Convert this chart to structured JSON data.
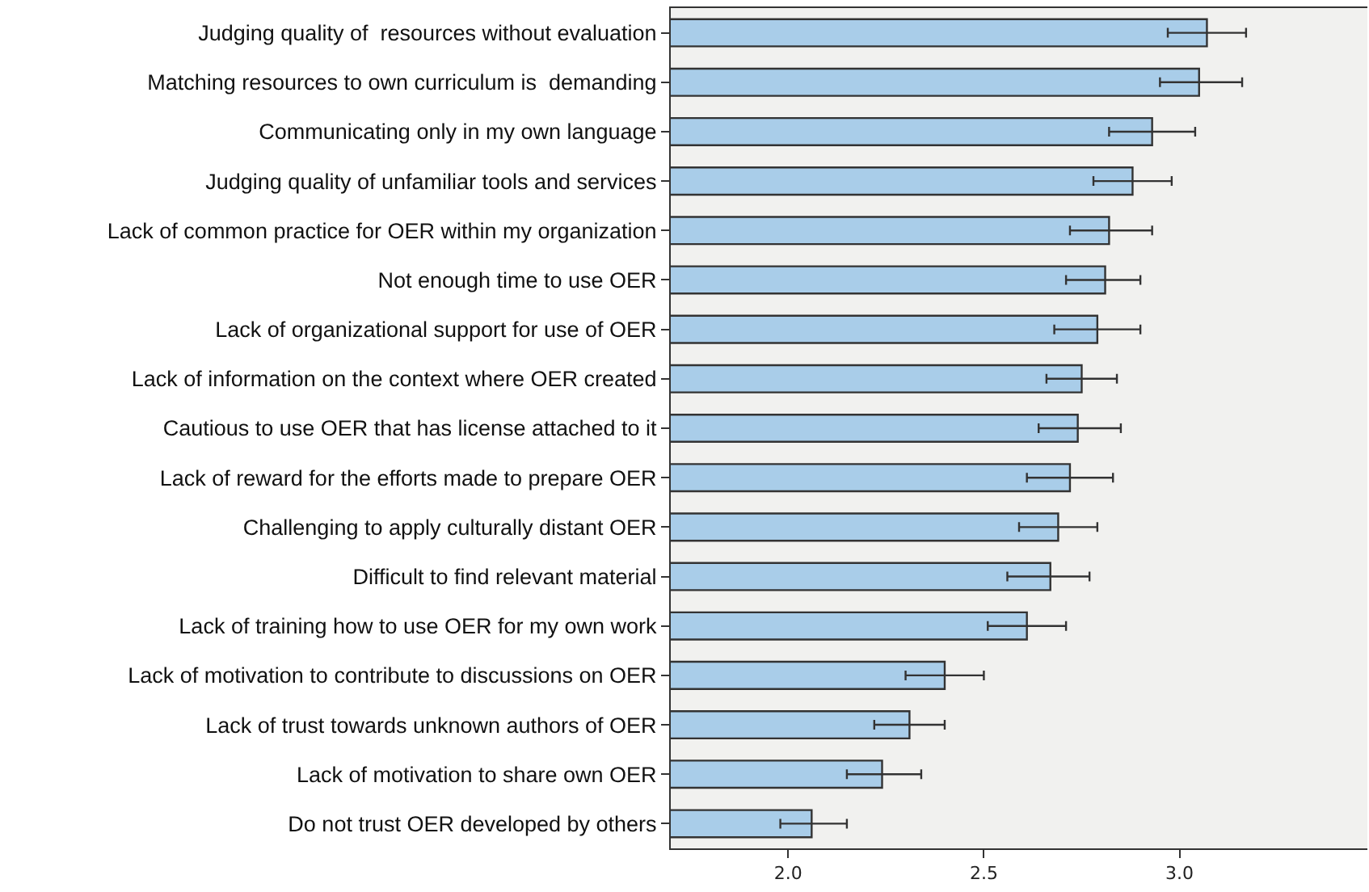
{
  "chart_data": {
    "type": "bar",
    "orientation": "horizontal",
    "categories": [
      "Judging quality of  resources without evaluation",
      "Matching resources to own curriculum is  demanding",
      "Communicating only in my own language",
      "Judging quality of unfamiliar tools and services",
      "Lack of common practice for OER within my organization",
      "Not enough time to use OER",
      "Lack of organizational support for use of OER",
      "Lack of information on the context where OER created",
      "Cautious to use OER that has license attached to it",
      "Lack of reward for the efforts made to prepare OER",
      "Challenging to apply culturally distant OER",
      "Difficult to find relevant material",
      "Lack of training how to use OER for my own work",
      "Lack of motivation to contribute to discussions on OER",
      "Lack of trust towards unknown authors of OER",
      "Lack of motivation to share own OER",
      "Do not trust OER developed by others"
    ],
    "values": [
      3.07,
      3.05,
      2.93,
      2.88,
      2.82,
      2.81,
      2.79,
      2.75,
      2.74,
      2.72,
      2.69,
      2.67,
      2.61,
      2.4,
      2.31,
      2.24,
      2.06
    ],
    "errors": [
      [
        2.97,
        3.17
      ],
      [
        2.95,
        3.16
      ],
      [
        2.82,
        3.04
      ],
      [
        2.78,
        2.98
      ],
      [
        2.72,
        2.93
      ],
      [
        2.71,
        2.9
      ],
      [
        2.68,
        2.9
      ],
      [
        2.66,
        2.84
      ],
      [
        2.64,
        2.85
      ],
      [
        2.61,
        2.83
      ],
      [
        2.59,
        2.79
      ],
      [
        2.56,
        2.77
      ],
      [
        2.51,
        2.71
      ],
      [
        2.3,
        2.5
      ],
      [
        2.22,
        2.4
      ],
      [
        2.15,
        2.34
      ],
      [
        1.98,
        2.15
      ]
    ],
    "color": "#a9cde9",
    "xlim": [
      1.7,
      3.48
    ],
    "xticks": [
      {
        "value": 2,
        "label": "2.0"
      },
      2.5,
      {
        "value": 3,
        "label": "3.0"
      }
    ],
    "grid": false
  }
}
